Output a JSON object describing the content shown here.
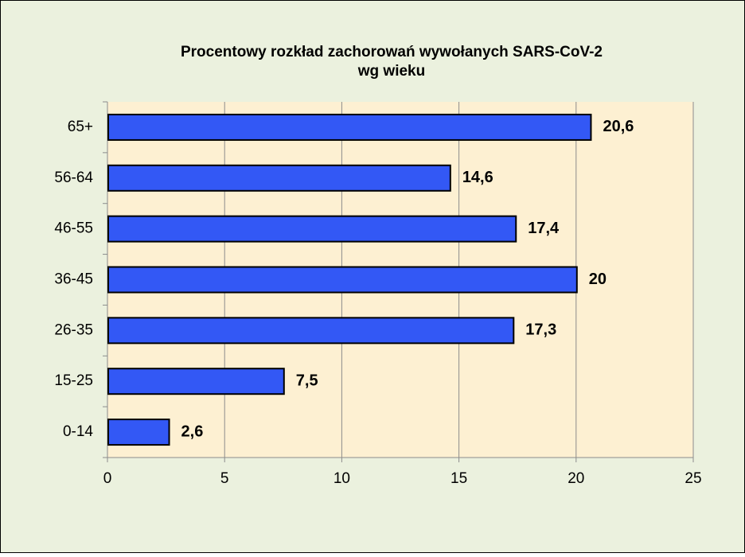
{
  "chart_data": {
    "type": "bar",
    "orientation": "horizontal",
    "title": [
      "Procentowy rozkład zachorowań wywołanych SARS-CoV-2",
      "wg wieku"
    ],
    "categories": [
      "65+",
      "56-64",
      "46-55",
      "36-45",
      "26-35",
      "15-25",
      "0-14"
    ],
    "values": [
      20.6,
      14.6,
      17.4,
      20,
      17.3,
      7.5,
      2.6
    ],
    "value_labels": [
      "20,6",
      "14,6",
      "17,4",
      "20",
      "17,3",
      "7,5",
      "2,6"
    ],
    "color": "#3358f5",
    "xlim": [
      0,
      25
    ],
    "xticks": [
      0,
      5,
      10,
      15,
      20,
      25
    ],
    "grid": true
  }
}
